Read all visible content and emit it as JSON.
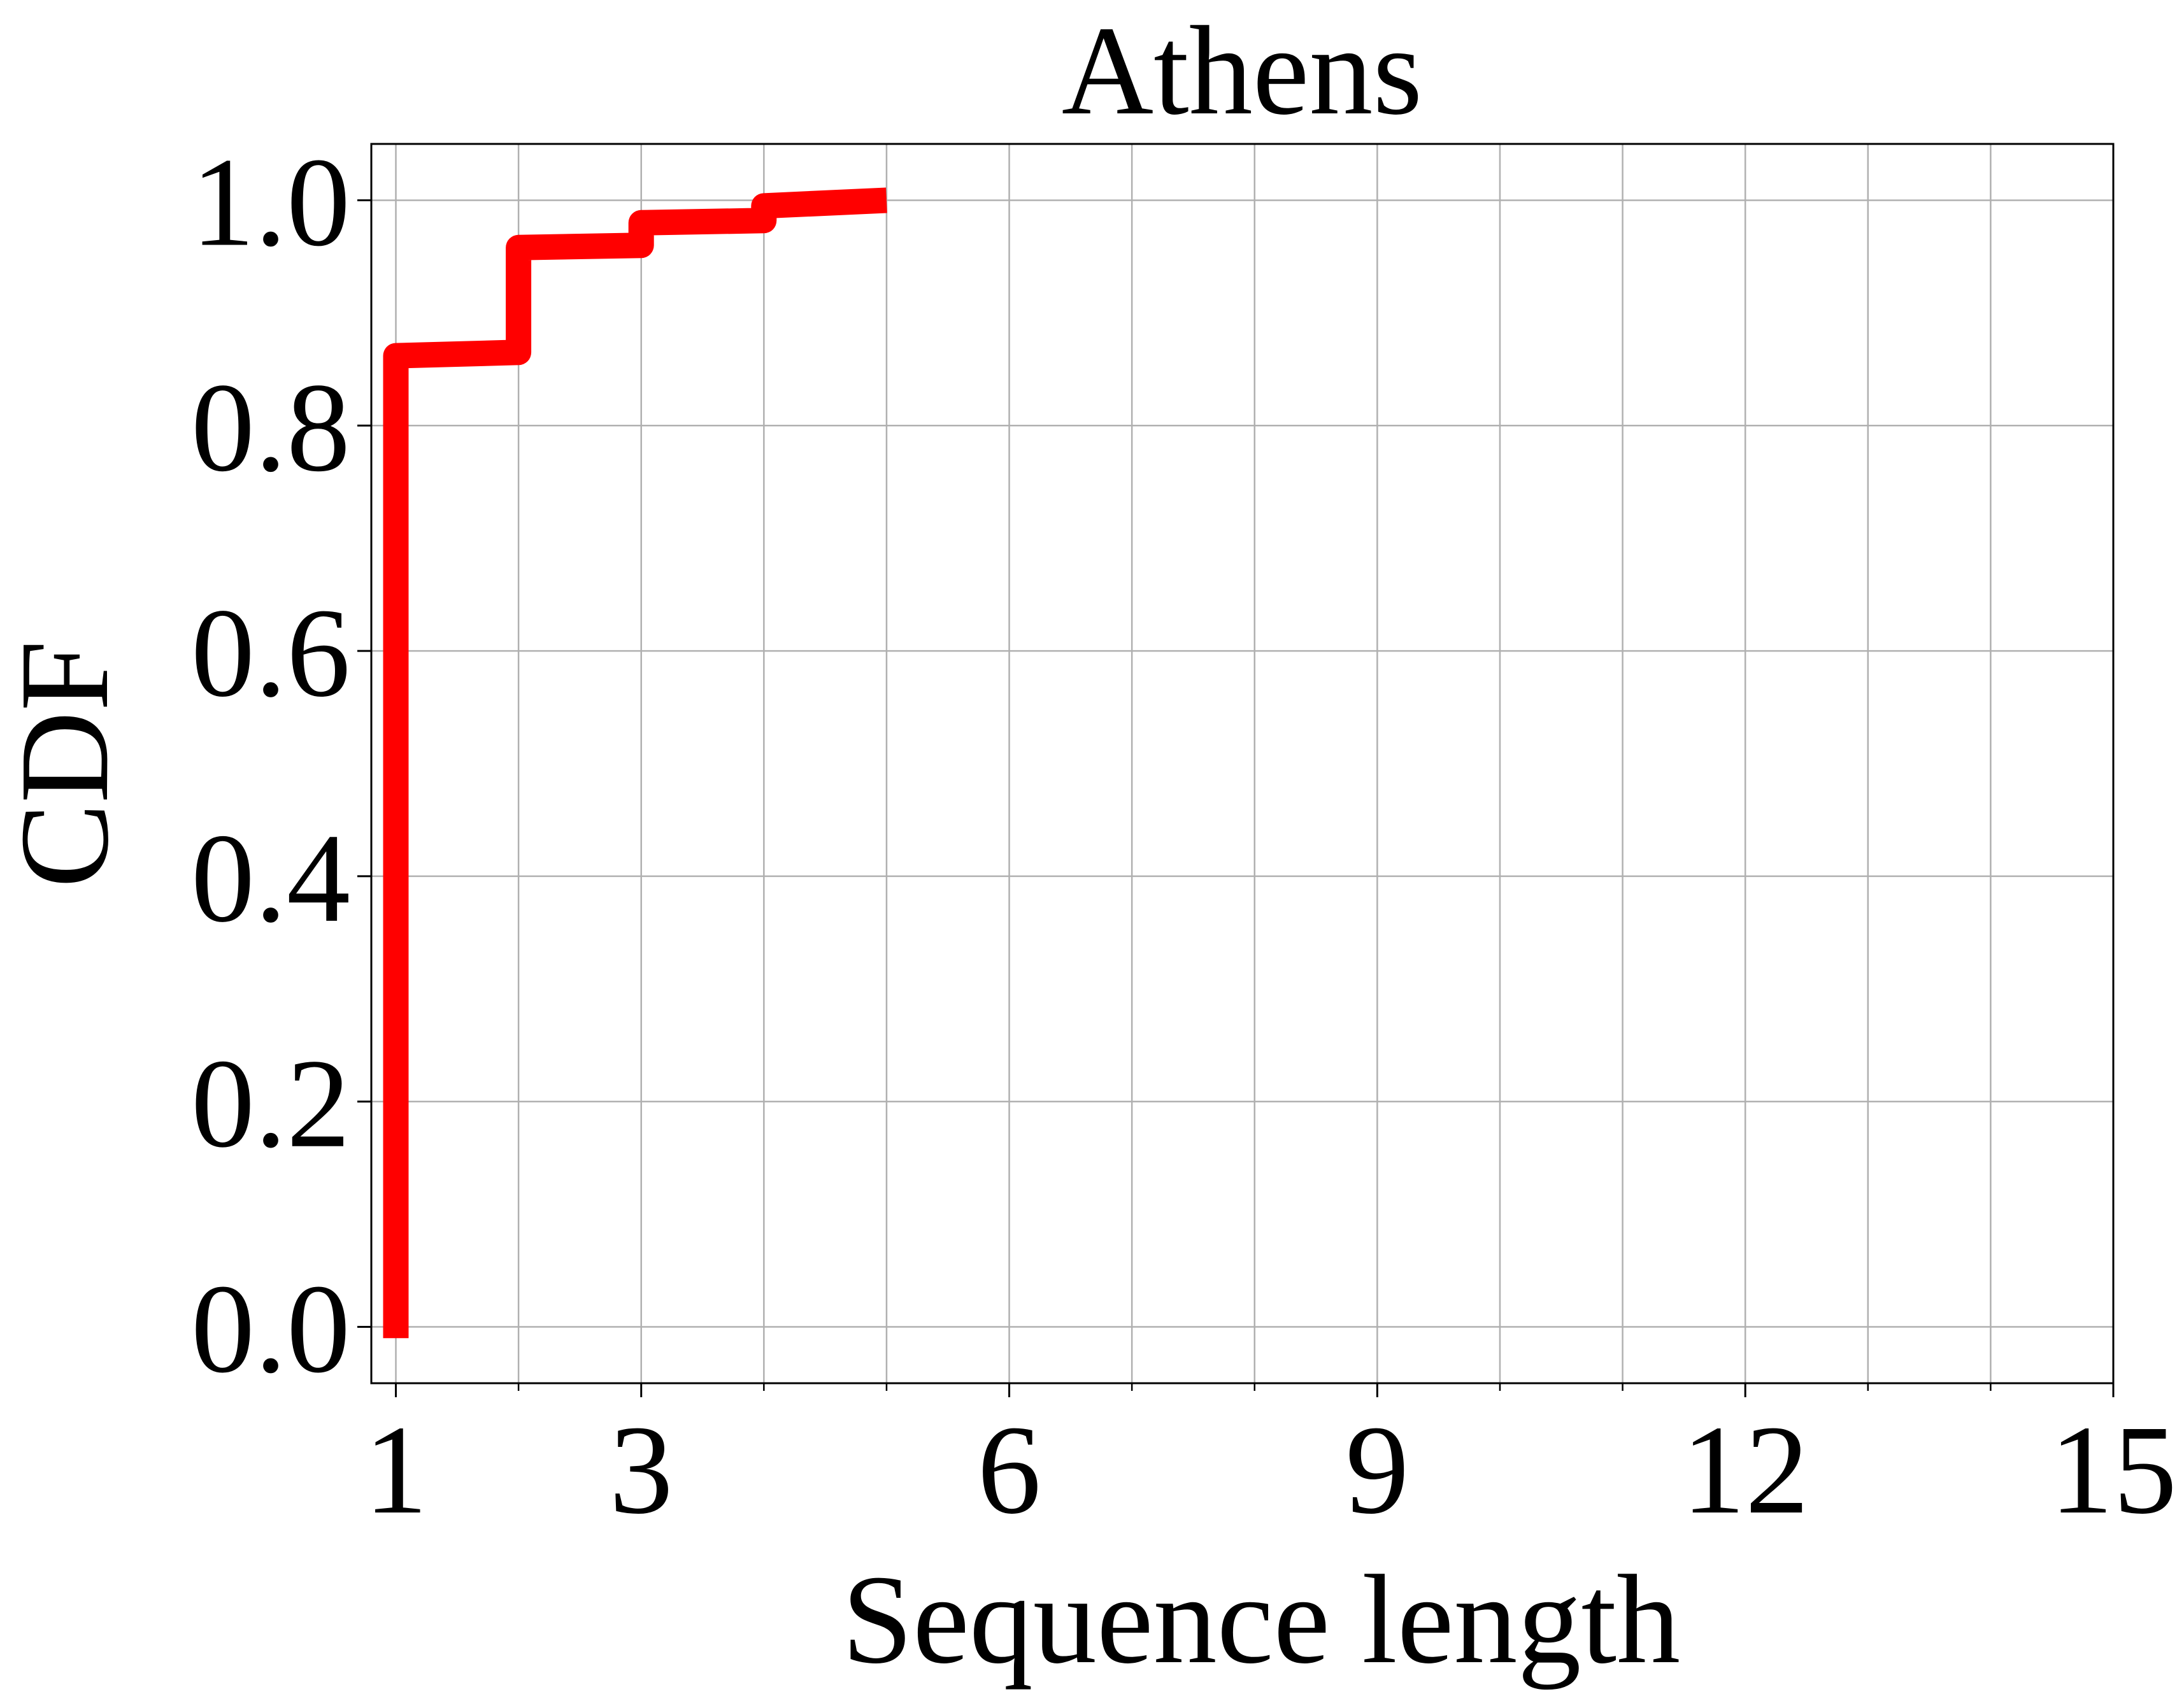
{
  "chart_data": {
    "type": "line",
    "title": "Athens",
    "xlabel": "Sequence length",
    "ylabel": "CDF",
    "xlim": [
      0.8,
      15
    ],
    "ylim": [
      -0.05,
      1.05
    ],
    "xticks": [
      1,
      3,
      6,
      9,
      12,
      15
    ],
    "xtick_labels": [
      "1",
      "3",
      "6",
      "9",
      "12",
      "15"
    ],
    "xminor_ticks": [
      2,
      4,
      5,
      7,
      8,
      10,
      11,
      13,
      14
    ],
    "yticks": [
      0.0,
      0.2,
      0.4,
      0.6,
      0.8,
      1.0
    ],
    "ytick_labels": [
      "0.0",
      "0.2",
      "0.4",
      "0.6",
      "0.8",
      "1.0"
    ],
    "grid": true,
    "series": [
      {
        "color": "#ff0000",
        "step": true,
        "x": [
          1,
          1,
          2,
          2,
          3,
          3,
          4,
          4,
          5
        ],
        "y": [
          -0.01,
          0.862,
          0.865,
          0.958,
          0.96,
          0.98,
          0.982,
          0.995,
          1.0
        ]
      }
    ]
  }
}
